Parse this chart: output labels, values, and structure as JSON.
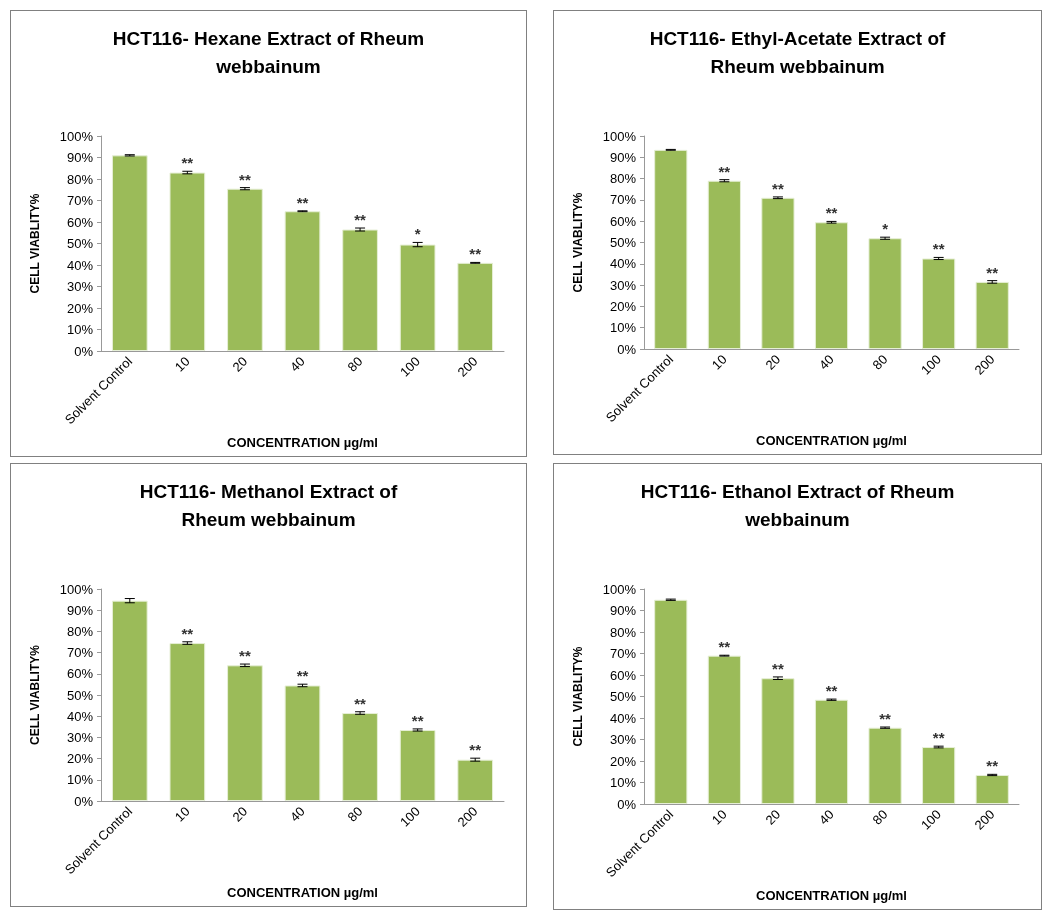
{
  "chart_data": [
    {
      "type": "bar",
      "title": "HCT116- Hexane Extract of Rheum\nwebbainum",
      "xlabel": "CONCENTRATION µg/ml",
      "ylabel": "CELL VIABLITY%",
      "categories": [
        "Solvent Control",
        "10",
        "20",
        "40",
        "80",
        "100",
        "200"
      ],
      "color": "#9bbb59",
      "values": [
        91,
        83,
        75.5,
        65,
        56.5,
        49.5,
        41
      ],
      "errors": [
        0.3,
        0.6,
        0.5,
        0.2,
        0.7,
        1.0,
        0.2
      ],
      "ylim": [
        0,
        100
      ],
      "yticks": [
        {
          "value": 0,
          "label": "0%"
        },
        {
          "value": 10,
          "label": "10%"
        },
        {
          "value": 20,
          "label": "20%"
        },
        {
          "value": 30,
          "label": "30%"
        },
        {
          "value": 40,
          "label": "40%"
        },
        {
          "value": 50,
          "label": "50%"
        },
        {
          "value": 60,
          "label": "60%"
        },
        {
          "value": 70,
          "label": "70%"
        },
        {
          "value": 80,
          "label": "80%"
        },
        {
          "value": 90,
          "label": "90%"
        },
        {
          "value": 100,
          "label": "100%"
        }
      ],
      "grid": false,
      "annotations": [
        {
          "text": "**",
          "x": "10",
          "y": 83.6
        },
        {
          "text": "**",
          "x": "20",
          "y": 76
        },
        {
          "text": "**",
          "x": "40",
          "y": 65.2
        },
        {
          "text": "**",
          "x": "80",
          "y": 57.2
        },
        {
          "text": "*",
          "x": "100",
          "y": 50.5
        },
        {
          "text": "**",
          "x": "200",
          "y": 41.2
        }
      ]
    },
    {
      "type": "bar",
      "title": "HCT116- Ethyl-Acetate Extract of\nRheum webbainum",
      "xlabel": "CONCENTRATION µg/ml",
      "ylabel": "CELL VIABLITY%",
      "categories": [
        "Solvent Control",
        "10",
        "20",
        "40",
        "80",
        "100",
        "200"
      ],
      "color": "#9bbb59",
      "values": [
        93.5,
        79,
        71,
        59.5,
        52,
        42.5,
        31.5
      ],
      "errors": [
        0.2,
        0.5,
        0.4,
        0.4,
        0.5,
        0.5,
        0.6
      ],
      "ylim": [
        0,
        100
      ],
      "yticks": [
        {
          "value": 0,
          "label": "0%"
        },
        {
          "value": 10,
          "label": "10%"
        },
        {
          "value": 20,
          "label": "20%"
        },
        {
          "value": 30,
          "label": "30%"
        },
        {
          "value": 40,
          "label": "40%"
        },
        {
          "value": 50,
          "label": "50%"
        },
        {
          "value": 60,
          "label": "60%"
        },
        {
          "value": 70,
          "label": "70%"
        },
        {
          "value": 80,
          "label": "80%"
        },
        {
          "value": 90,
          "label": "90%"
        },
        {
          "value": 100,
          "label": "100%"
        }
      ],
      "grid": false,
      "annotations": [
        {
          "text": "**",
          "x": "10",
          "y": 79.5
        },
        {
          "text": "**",
          "x": "20",
          "y": 71.4
        },
        {
          "text": "**",
          "x": "40",
          "y": 59.9
        },
        {
          "text": "*",
          "x": "80",
          "y": 52.5
        },
        {
          "text": "**",
          "x": "100",
          "y": 43
        },
        {
          "text": "**",
          "x": "200",
          "y": 32.1
        }
      ]
    },
    {
      "type": "bar",
      "title": "HCT116- Methanol Extract of\nRheum webbainum",
      "xlabel": "CONCENTRATION µg/ml",
      "ylabel": "CELL VIABLITY%",
      "categories": [
        "Solvent Control",
        "10",
        "20",
        "40",
        "80",
        "100",
        "200"
      ],
      "color": "#9bbb59",
      "values": [
        94.5,
        74.5,
        64,
        54.5,
        41.5,
        33.5,
        19.5
      ],
      "errors": [
        1.0,
        0.6,
        0.6,
        0.6,
        0.6,
        0.5,
        0.7
      ],
      "ylim": [
        0,
        100
      ],
      "yticks": [
        {
          "value": 0,
          "label": "0%"
        },
        {
          "value": 10,
          "label": "10%"
        },
        {
          "value": 20,
          "label": "20%"
        },
        {
          "value": 30,
          "label": "30%"
        },
        {
          "value": 40,
          "label": "40%"
        },
        {
          "value": 50,
          "label": "50%"
        },
        {
          "value": 60,
          "label": "60%"
        },
        {
          "value": 70,
          "label": "70%"
        },
        {
          "value": 80,
          "label": "80%"
        },
        {
          "value": 90,
          "label": "90%"
        },
        {
          "value": 100,
          "label": "100%"
        }
      ],
      "grid": false,
      "annotations": [
        {
          "text": "**",
          "x": "10",
          "y": 75.1
        },
        {
          "text": "**",
          "x": "20",
          "y": 64.6
        },
        {
          "text": "**",
          "x": "40",
          "y": 55.1
        },
        {
          "text": "**",
          "x": "80",
          "y": 42.1
        },
        {
          "text": "**",
          "x": "100",
          "y": 34
        },
        {
          "text": "**",
          "x": "200",
          "y": 20.2
        }
      ]
    },
    {
      "type": "bar",
      "title": "HCT116- Ethanol Extract of Rheum\nwebbainum",
      "xlabel": "CONCENTRATION µg/ml",
      "ylabel": "CELL VIABLITY%",
      "categories": [
        "Solvent Control",
        "10",
        "20",
        "40",
        "80",
        "100",
        "200"
      ],
      "color": "#9bbb59",
      "values": [
        95,
        69,
        58.5,
        48.5,
        35.5,
        26.5,
        13.5
      ],
      "errors": [
        0.3,
        0.2,
        0.6,
        0.3,
        0.3,
        0.4,
        0.3
      ],
      "ylim": [
        0,
        100
      ],
      "yticks": [
        {
          "value": 0,
          "label": "0%"
        },
        {
          "value": 10,
          "label": "10%"
        },
        {
          "value": 20,
          "label": "20%"
        },
        {
          "value": 30,
          "label": "30%"
        },
        {
          "value": 40,
          "label": "40%"
        },
        {
          "value": 50,
          "label": "50%"
        },
        {
          "value": 60,
          "label": "60%"
        },
        {
          "value": 70,
          "label": "70%"
        },
        {
          "value": 80,
          "label": "80%"
        },
        {
          "value": 90,
          "label": "90%"
        },
        {
          "value": 100,
          "label": "100%"
        }
      ],
      "grid": false,
      "annotations": [
        {
          "text": "**",
          "x": "10",
          "y": 69.2
        },
        {
          "text": "**",
          "x": "20",
          "y": 59.1
        },
        {
          "text": "**",
          "x": "40",
          "y": 48.8
        },
        {
          "text": "**",
          "x": "80",
          "y": 35.8
        },
        {
          "text": "**",
          "x": "100",
          "y": 26.9
        },
        {
          "text": "**",
          "x": "200",
          "y": 13.8
        }
      ]
    }
  ]
}
